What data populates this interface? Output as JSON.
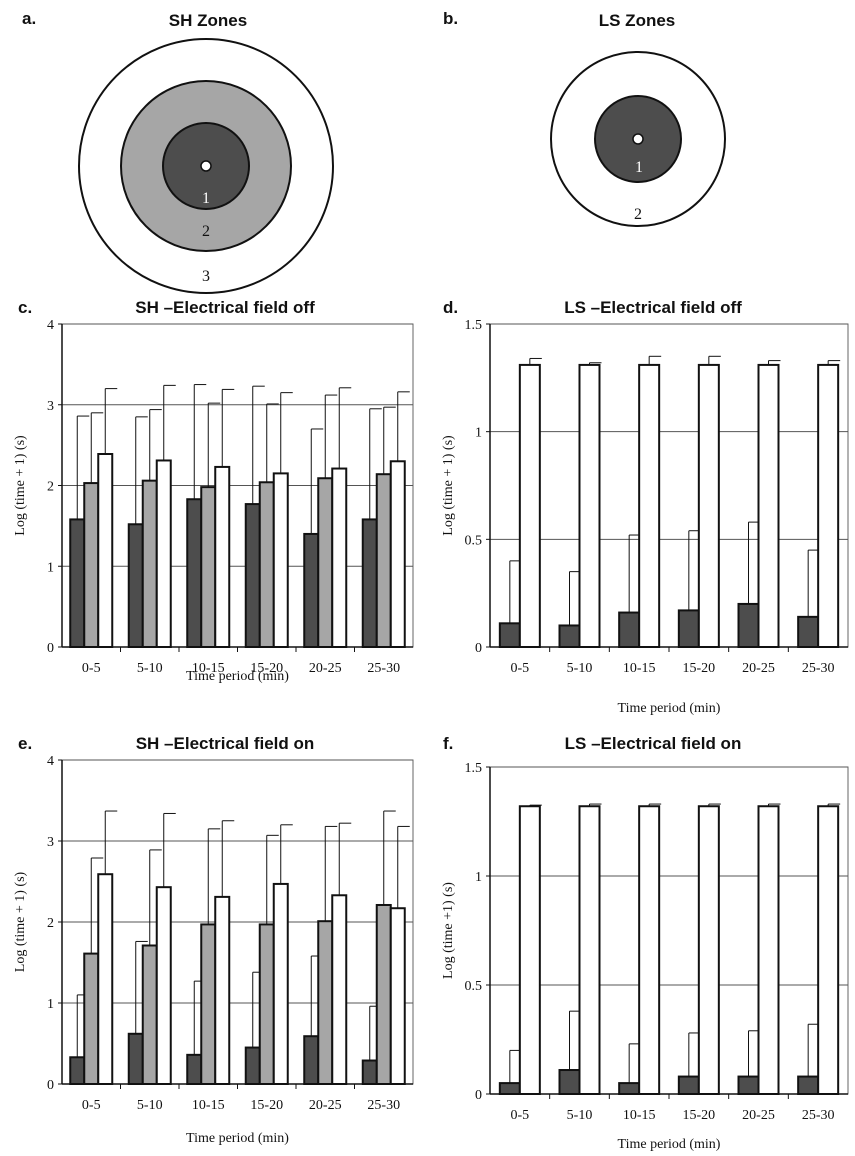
{
  "zones": [
    {
      "letter": "a.",
      "title": "SH Zones",
      "labels": [
        "1",
        "2",
        "3"
      ]
    },
    {
      "letter": "b.",
      "title": "LS Zones",
      "labels": [
        "1",
        "2"
      ]
    }
  ],
  "colors": {
    "zone1": "#4d4d4d",
    "zone2": "#a6a6a6",
    "zone3": "#ffffff",
    "gridline": "#555555"
  },
  "chart_data": [
    {
      "letter": "c.",
      "title": "SH –Electrical field off",
      "type": "bar",
      "categories": [
        "0-5",
        "5-10",
        "10-15",
        "15-20",
        "20-25",
        "25-30"
      ],
      "xlabel": "Time period (min)",
      "ylabel": "Log (time + 1) (s)",
      "ylim": [
        0,
        4
      ],
      "yticks": [
        "0",
        "1",
        "2",
        "3",
        "4"
      ],
      "ytick_values": [
        0,
        1,
        2,
        3,
        4
      ],
      "grid": true,
      "series": [
        {
          "values": [
            1.58,
            1.52,
            1.83,
            1.77,
            1.4,
            1.58
          ],
          "err": [
            1.28,
            1.33,
            1.42,
            1.46,
            1.3,
            1.37
          ]
        },
        {
          "values": [
            2.03,
            2.06,
            1.98,
            2.04,
            2.09,
            2.14
          ],
          "err": [
            0.87,
            0.88,
            1.04,
            0.97,
            1.03,
            0.83
          ]
        },
        {
          "values": [
            2.39,
            2.31,
            2.23,
            2.15,
            2.21,
            2.3
          ],
          "err": [
            0.81,
            0.93,
            0.96,
            1.0,
            1.0,
            0.86
          ]
        }
      ]
    },
    {
      "letter": "d.",
      "title": "LS –Electrical field off",
      "type": "bar",
      "categories": [
        "0-5",
        "5-10",
        "10-15",
        "15-20",
        "20-25",
        "25-30"
      ],
      "xlabel": "Time period (min)",
      "ylabel": "Log (time + 1) (s)",
      "ylim": [
        0,
        1.5
      ],
      "yticks": [
        "0",
        "0.5",
        "1",
        "1.5"
      ],
      "ytick_values": [
        0,
        0.5,
        1,
        1.5
      ],
      "grid": true,
      "series": [
        {
          "values": [
            0.11,
            0.1,
            0.16,
            0.17,
            0.2,
            0.14
          ],
          "err": [
            0.29,
            0.25,
            0.36,
            0.37,
            0.38,
            0.31
          ]
        },
        {
          "values": [
            1.31,
            1.31,
            1.31,
            1.31,
            1.31,
            1.31
          ],
          "err": [
            0.03,
            0.01,
            0.04,
            0.04,
            0.02,
            0.02
          ]
        }
      ]
    },
    {
      "letter": "e.",
      "title": "SH –Electrical field on",
      "type": "bar",
      "categories": [
        "0-5",
        "5-10",
        "10-15",
        "15-20",
        "20-25",
        "25-30"
      ],
      "xlabel": "Time period (min)",
      "ylabel": "Log (time + 1) (s)",
      "ylim": [
        0,
        4
      ],
      "yticks": [
        "0",
        "1",
        "2",
        "3",
        "4"
      ],
      "ytick_values": [
        0,
        1,
        2,
        3,
        4
      ],
      "grid": true,
      "series": [
        {
          "values": [
            0.33,
            0.62,
            0.36,
            0.45,
            0.59,
            0.29
          ],
          "err": [
            0.77,
            1.14,
            0.91,
            0.93,
            0.99,
            0.67
          ]
        },
        {
          "values": [
            1.61,
            1.71,
            1.97,
            1.97,
            2.01,
            2.21
          ],
          "err": [
            1.18,
            1.18,
            1.18,
            1.1,
            1.17,
            1.16
          ]
        },
        {
          "values": [
            2.59,
            2.43,
            2.31,
            2.47,
            2.33,
            2.17
          ],
          "err": [
            0.78,
            0.91,
            0.94,
            0.73,
            0.89,
            1.01
          ]
        }
      ]
    },
    {
      "letter": "f.",
      "title": "LS –Electrical field on",
      "type": "bar",
      "categories": [
        "0-5",
        "5-10",
        "10-15",
        "15-20",
        "20-25",
        "25-30"
      ],
      "xlabel": "Time period (min)",
      "ylabel": "Log (time +1) (s)",
      "ylim": [
        0,
        1.5
      ],
      "yticks": [
        "0",
        "0.5",
        "1",
        "1.5"
      ],
      "ytick_values": [
        0,
        0.5,
        1,
        1.5
      ],
      "grid": true,
      "series": [
        {
          "values": [
            0.05,
            0.11,
            0.05,
            0.08,
            0.08,
            0.08
          ],
          "err": [
            0.15,
            0.27,
            0.18,
            0.2,
            0.21,
            0.24
          ]
        },
        {
          "values": [
            1.32,
            1.32,
            1.32,
            1.32,
            1.32,
            1.32
          ],
          "err": [
            0.005,
            0.01,
            0.01,
            0.01,
            0.01,
            0.01
          ]
        }
      ]
    }
  ]
}
